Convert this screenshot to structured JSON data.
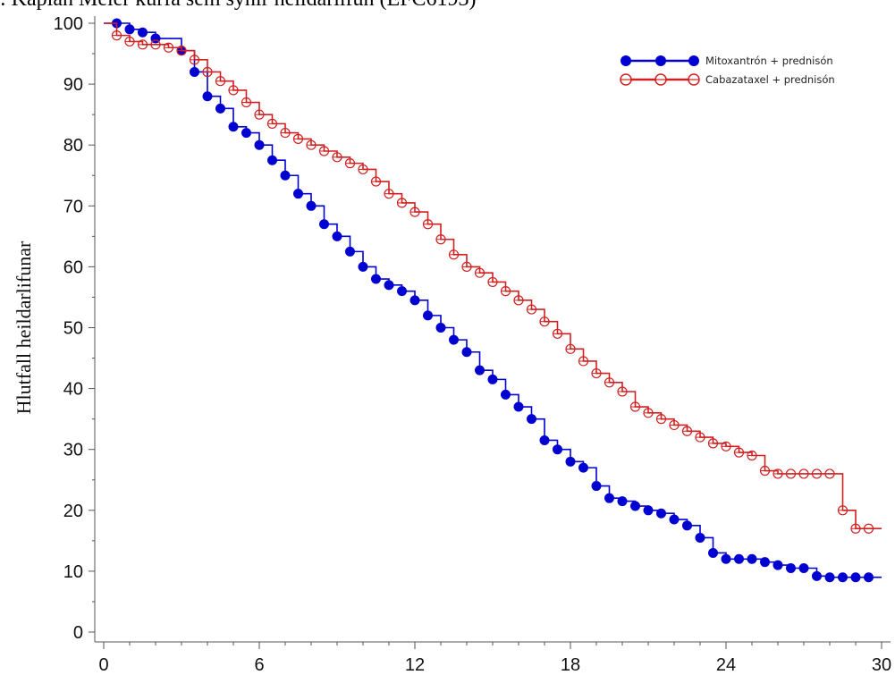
{
  "chart_data": {
    "type": "line",
    "title": ": Kaplan Meier kúrfa sem sýnir heildarlifun (EFC6193)",
    "xlabel": "",
    "ylabel": "Hlutfall heildarlifunar",
    "xlim": [
      0,
      30
    ],
    "ylim": [
      0,
      100
    ],
    "xticks": [
      0,
      6,
      12,
      18,
      24,
      30
    ],
    "yticks": [
      0,
      10,
      20,
      30,
      40,
      50,
      60,
      70,
      80,
      90,
      100
    ],
    "grid": false,
    "legend_position": "top-right",
    "series": [
      {
        "name": "Mitoxantrón + prednisón",
        "color": "#0000d0",
        "marker": "filled-circle",
        "step": true,
        "x": [
          0,
          0.5,
          1,
          1.5,
          2,
          3,
          3.5,
          4,
          4.5,
          5,
          5.5,
          6,
          6.5,
          7,
          7.5,
          8,
          8.5,
          9,
          9.5,
          10,
          10.5,
          11,
          11.5,
          12,
          12.5,
          13,
          13.5,
          14,
          14.5,
          15,
          15.5,
          16,
          16.5,
          17,
          17.5,
          18,
          18.5,
          19,
          19.5,
          20,
          20.5,
          21,
          21.5,
          22,
          22.5,
          23,
          23.5,
          24,
          24.5,
          25,
          25.5,
          26,
          26.5,
          27,
          27.5,
          28,
          28.5,
          29,
          29.5,
          30
        ],
        "y": [
          100,
          100,
          99,
          98.5,
          97.5,
          95.5,
          92,
          88,
          86,
          83,
          82,
          80,
          77.5,
          75,
          72,
          70,
          67,
          65,
          62.5,
          60,
          58,
          57,
          56,
          54.5,
          52,
          50,
          48,
          46,
          43,
          41.5,
          39,
          37,
          35,
          31.5,
          30,
          28,
          27,
          24,
          22,
          21.5,
          20.7,
          20,
          19.5,
          18.5,
          17.5,
          15.5,
          13,
          12,
          12,
          12,
          11.5,
          11,
          10.5,
          10.5,
          9.2,
          9,
          9,
          9,
          9,
          9
        ]
      },
      {
        "name": "Cabazataxel + prednisón",
        "color": "#d02020",
        "marker": "open-circle",
        "step": true,
        "x": [
          0,
          0.5,
          1,
          1.5,
          2,
          2.5,
          3,
          3.5,
          4,
          4.5,
          5,
          5.5,
          6,
          6.5,
          7,
          7.5,
          8,
          8.5,
          9,
          9.5,
          10,
          10.5,
          11,
          11.5,
          12,
          12.5,
          13,
          13.5,
          14,
          14.5,
          15,
          15.5,
          16,
          16.5,
          17,
          17.5,
          18,
          18.5,
          19,
          19.5,
          20,
          20.5,
          21,
          21.5,
          22,
          22.5,
          23,
          23.5,
          24,
          24.5,
          25,
          25.5,
          26,
          26.5,
          27,
          27.5,
          28,
          28.5,
          29,
          29.5,
          30
        ],
        "y": [
          100,
          98,
          97,
          96.5,
          96.5,
          96,
          95.5,
          94,
          92,
          90.5,
          89,
          87,
          85,
          83.5,
          82,
          81,
          80,
          79,
          78,
          77,
          76,
          74,
          72,
          70.5,
          69,
          67,
          64.5,
          62,
          60,
          59,
          57.5,
          56,
          54.5,
          53,
          51,
          49,
          46.5,
          44.5,
          42.5,
          41,
          39.5,
          37,
          36,
          35,
          34,
          33,
          32,
          31,
          30.5,
          29.5,
          29,
          26.5,
          26,
          26,
          26,
          26,
          26,
          20,
          17,
          17,
          17
        ]
      }
    ]
  }
}
